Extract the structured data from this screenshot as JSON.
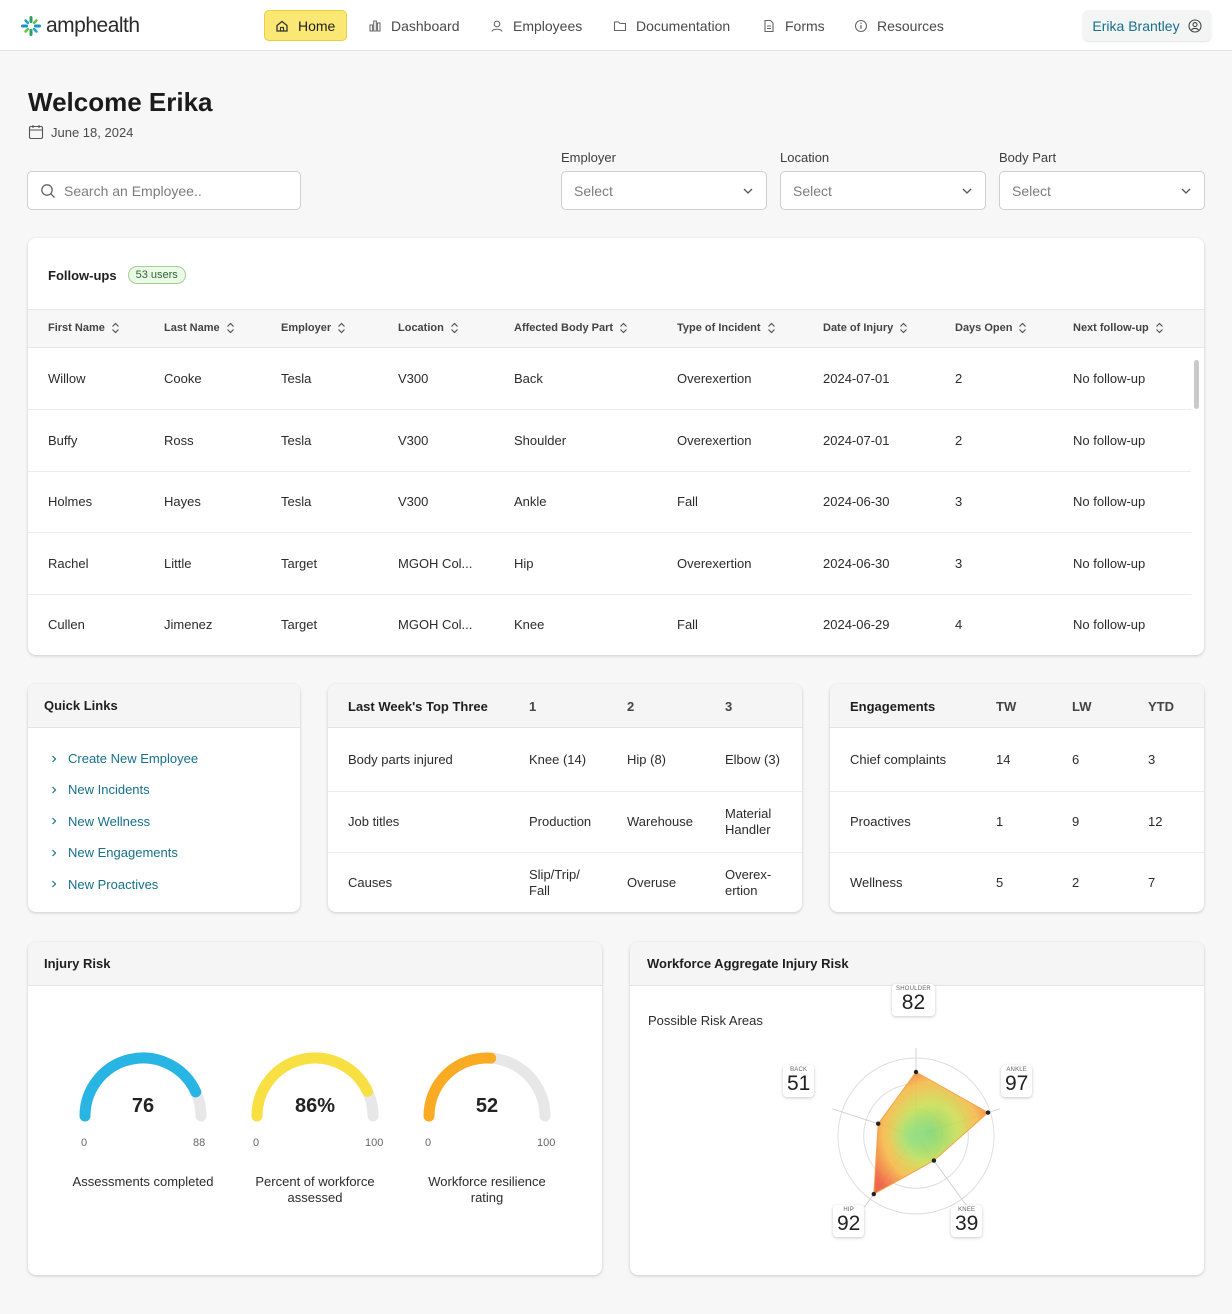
{
  "brand": {
    "name": "amphealth"
  },
  "nav": {
    "home": "Home",
    "dashboard": "Dashboard",
    "employees": "Employees",
    "documentation": "Documentation",
    "forms": "Forms",
    "resources": "Resources",
    "user": "Erika Brantley"
  },
  "welcome": {
    "title": "Welcome Erika",
    "date": "June 18, 2024"
  },
  "search": {
    "placeholder": "Search an Employee.."
  },
  "filters": {
    "employer": {
      "label": "Employer",
      "value": "Select"
    },
    "location": {
      "label": "Location",
      "value": "Select"
    },
    "body_part": {
      "label": "Body Part",
      "value": "Select"
    }
  },
  "followups": {
    "title": "Follow-ups",
    "badge": "53 users",
    "columns": [
      "First Name",
      "Last Name",
      "Employer",
      "Location",
      "Affected Body Part",
      "Type of Incident",
      "Date of Injury",
      "Days Open",
      "Next follow-up"
    ],
    "rows": [
      [
        "Willow",
        "Cooke",
        "Tesla",
        "V300",
        "Back",
        "Overexertion",
        "2024-07-01",
        "2",
        "No follow-up"
      ],
      [
        "Buffy",
        "Ross",
        "Tesla",
        "V300",
        "Shoulder",
        "Overexertion",
        "2024-07-01",
        "2",
        "No follow-up"
      ],
      [
        "Holmes",
        "Hayes",
        "Tesla",
        "V300",
        "Ankle",
        "Fall",
        "2024-06-30",
        "3",
        "No follow-up"
      ],
      [
        "Rachel",
        "Little",
        "Target",
        "MGOH Col...",
        "Hip",
        "Overexertion",
        "2024-06-30",
        "3",
        "No follow-up"
      ],
      [
        "Cullen",
        "Jimenez",
        "Target",
        "MGOH Col...",
        "Knee",
        "Fall",
        "2024-06-29",
        "4",
        "No follow-up"
      ]
    ]
  },
  "quick_links": {
    "title": "Quick Links",
    "items": [
      "Create New Employee",
      "New Incidents",
      "New Wellness",
      "New Engagements",
      "New Proactives"
    ]
  },
  "top_three": {
    "title": "Last Week's Top Three",
    "columns": [
      "1",
      "2",
      "3"
    ],
    "rows": [
      {
        "label": "Body parts injured",
        "values": [
          "Knee (14)",
          "Hip (8)",
          "Elbow (3)"
        ]
      },
      {
        "label": "Job titles",
        "values": [
          "Production",
          "Warehouse",
          "Material Handler"
        ]
      },
      {
        "label": "Causes",
        "values": [
          "Slip/Trip/ Fall",
          "Overuse",
          "Overex- ertion"
        ]
      }
    ]
  },
  "engagements": {
    "title": "Engagements",
    "columns": [
      "TW",
      "LW",
      "YTD"
    ],
    "rows": [
      {
        "label": "Chief complaints",
        "values": [
          "14",
          "6",
          "3"
        ]
      },
      {
        "label": "Proactives",
        "values": [
          "1",
          "9",
          "12"
        ]
      },
      {
        "label": "Wellness",
        "values": [
          "5",
          "2",
          "7"
        ]
      }
    ]
  },
  "injury_risk": {
    "title": "Injury Risk",
    "gauges": [
      {
        "value": 76,
        "display": "76",
        "min": "0",
        "max": "88",
        "label": "Assessments completed",
        "color": "#29b5e3"
      },
      {
        "value": 86,
        "display": "86%",
        "min": "0",
        "max": "100",
        "label": "Percent of workforce assessed",
        "color": "#f8e042"
      },
      {
        "value": 52,
        "display": "52",
        "min": "0",
        "max": "100",
        "label": "Workforce resilience rating",
        "color": "#f8ab23"
      }
    ]
  },
  "aggregate": {
    "title": "Workforce Aggregate Injury Risk",
    "subtitle": "Possible Risk Areas",
    "areas": [
      {
        "name": "SHOULDER",
        "value": 82
      },
      {
        "name": "ANKLE",
        "value": 97
      },
      {
        "name": "KNEE",
        "value": 39
      },
      {
        "name": "HIP",
        "value": 92
      },
      {
        "name": "BACK",
        "value": 51
      }
    ]
  },
  "colors": {
    "accent": "#16708a",
    "home_bg": "#fbe773",
    "brand_green": "#2aa05a",
    "brand_blue": "#1d8fc9"
  }
}
